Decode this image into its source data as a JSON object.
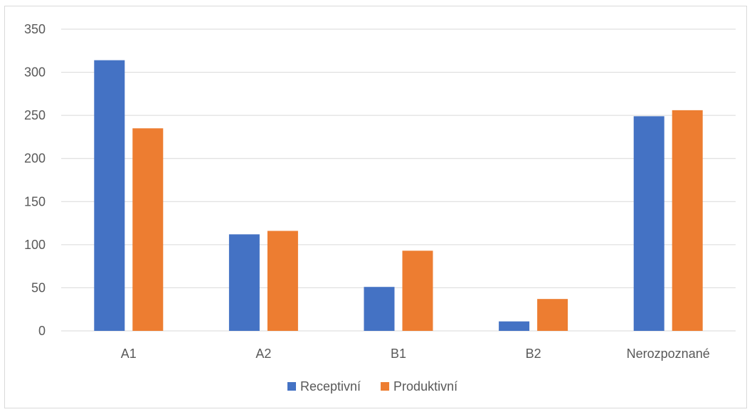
{
  "chart_data": {
    "type": "bar",
    "categories": [
      "A1",
      "A2",
      "B1",
      "B2",
      "Nerozpoznané"
    ],
    "series": [
      {
        "name": "Receptivní",
        "color": "#4472c4",
        "values": [
          314,
          112,
          51,
          11,
          249
        ]
      },
      {
        "name": "Produktivní",
        "color": "#ed7d31",
        "values": [
          235,
          116,
          93,
          37,
          256
        ]
      }
    ],
    "ylim": [
      0,
      350
    ],
    "yticks": [
      "0",
      "50",
      "100",
      "150",
      "200",
      "250",
      "300",
      "350"
    ],
    "grid": true,
    "grid_color": "#d9d9d9",
    "legend_position": "bottom"
  }
}
